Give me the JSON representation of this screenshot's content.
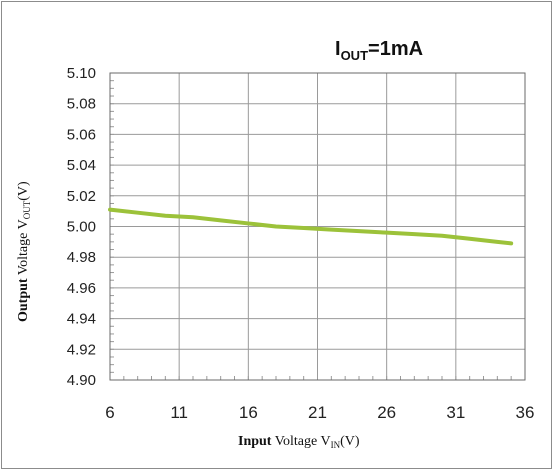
{
  "chart_data": {
    "type": "line",
    "title": {
      "main": "I",
      "sub": "OUT",
      "rest": "=1mA"
    },
    "xlabel": {
      "bold": "Input",
      "main": " Voltage  V",
      "sub": "IN",
      "unit": "(V)"
    },
    "ylabel": {
      "bold": "Output",
      "main": " Voltage  V",
      "sub": "OUT",
      "unit": "(V)"
    },
    "xlim": [
      6,
      36
    ],
    "ylim": [
      4.9,
      5.1
    ],
    "x_ticks": [
      "6",
      "11",
      "16",
      "21",
      "26",
      "31",
      "36"
    ],
    "y_ticks": [
      "5.10",
      "5.08",
      "5.06",
      "5.04",
      "5.02",
      "5.00",
      "4.98",
      "4.96",
      "4.94",
      "4.92",
      "4.90"
    ],
    "grid": true,
    "series": [
      {
        "color": "#9cc23a",
        "x": [
          6,
          8,
          10,
          12,
          14,
          16,
          18,
          20,
          22,
          24,
          26,
          28,
          30,
          32,
          34,
          35
        ],
        "y": [
          5.011,
          5.009,
          5.007,
          5.006,
          5.004,
          5.002,
          5.0,
          4.999,
          4.998,
          4.997,
          4.996,
          4.995,
          4.994,
          4.992,
          4.99,
          4.989
        ]
      }
    ]
  }
}
